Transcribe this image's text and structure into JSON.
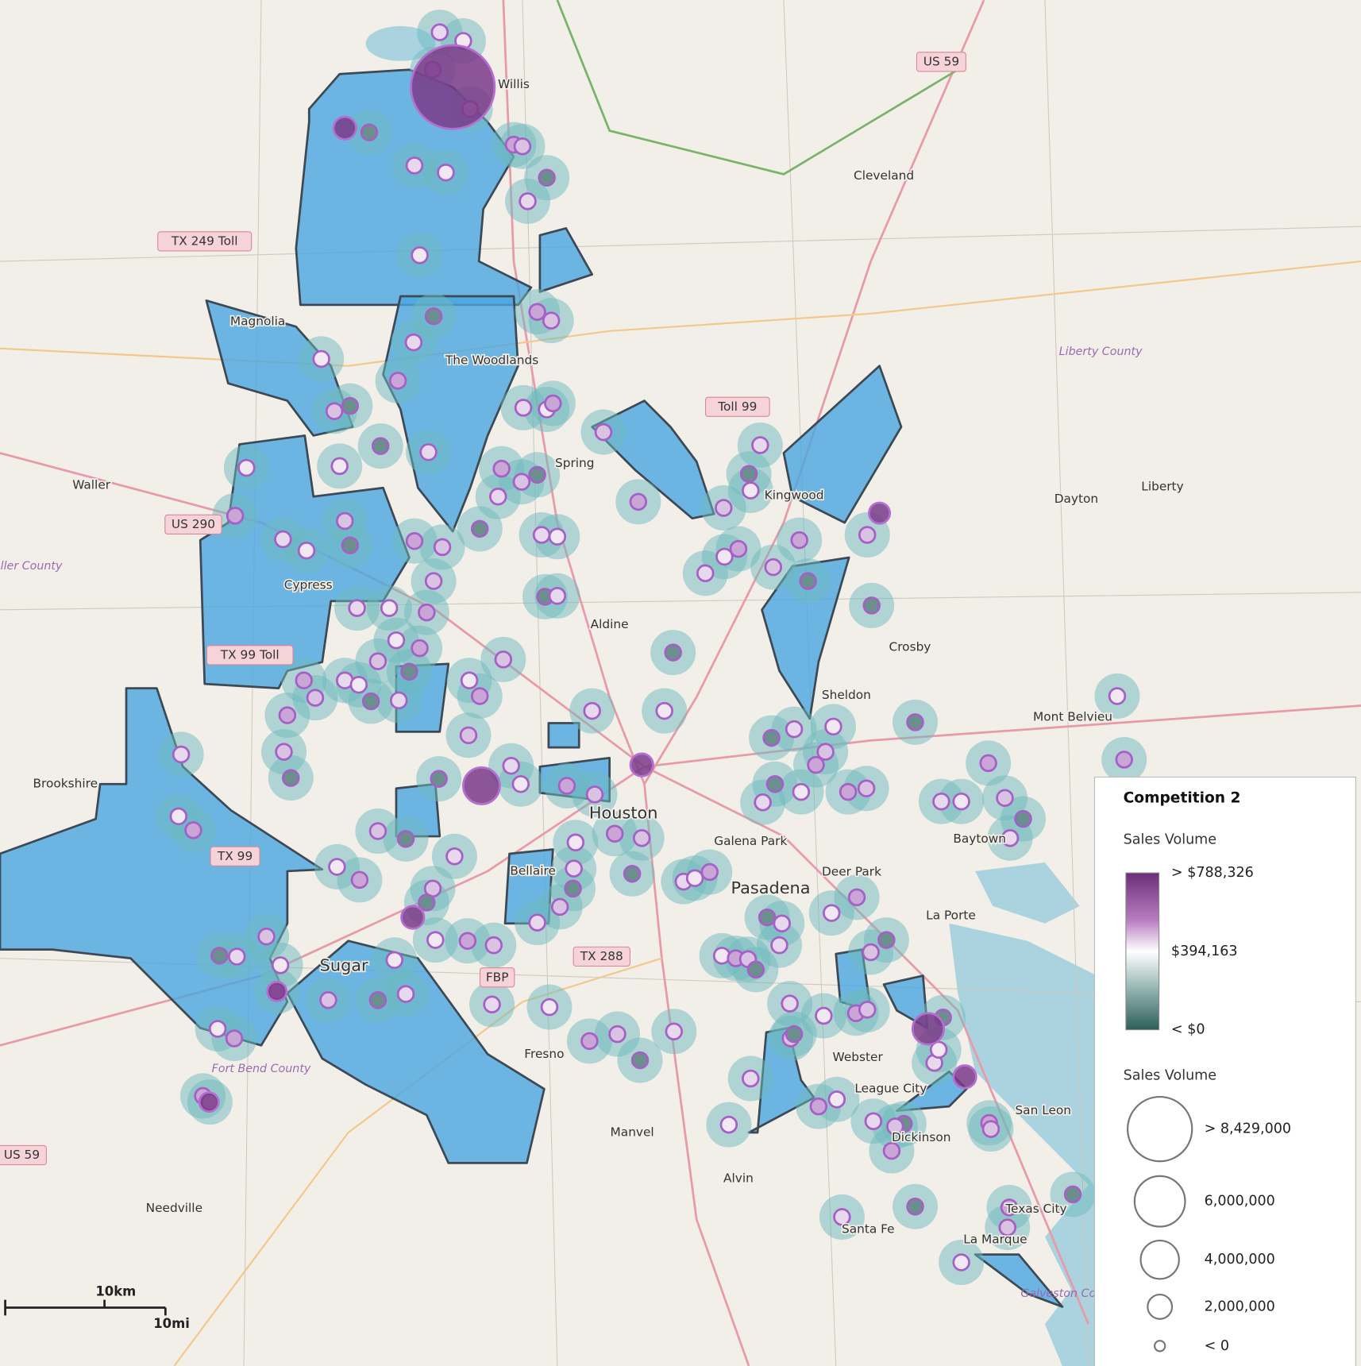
{
  "map": {
    "place_labels": [
      "Willis",
      "US 59",
      "Cleveland",
      "TX 249 Toll",
      "Magnolia",
      "The Woodlands",
      "Toll 99",
      "Spring",
      "Kingwood",
      "Liberty County",
      "Waller",
      "Liberty",
      "Dayton",
      "Waller County",
      "US 290",
      "Cypress",
      "Aldine",
      "Crosby",
      "TX 99 Toll",
      "Sheldon",
      "Mont Belvieu",
      "Brookshire",
      "Houston",
      "Galena Park",
      "Deer Park",
      "Pasadena",
      "La Porte",
      "Bellaire",
      "TX 99",
      "Sugar",
      "FBP",
      "TX 288",
      "Fresno",
      "Webster",
      "League City",
      "San Leon",
      "Dickinson",
      "Manvel",
      "Alvin",
      "Texas City",
      "Santa Fe",
      "La Marque",
      "Needville",
      "US 59",
      "Fort Bend County",
      "Baytown",
      "Galveston County"
    ],
    "scale_bar": {
      "km": "10km",
      "mi": "10mi"
    }
  },
  "legend": {
    "title": "Competition 2",
    "color_scale": {
      "title": "Sales Volume",
      "labels": [
        "> $788,326",
        "$394,163",
        "< $0"
      ]
    },
    "size_scale": {
      "title": "Sales Volume",
      "labels": [
        "> 8,429,000",
        "6,000,000",
        "4,000,000",
        "2,000,000",
        "< 0"
      ]
    }
  }
}
